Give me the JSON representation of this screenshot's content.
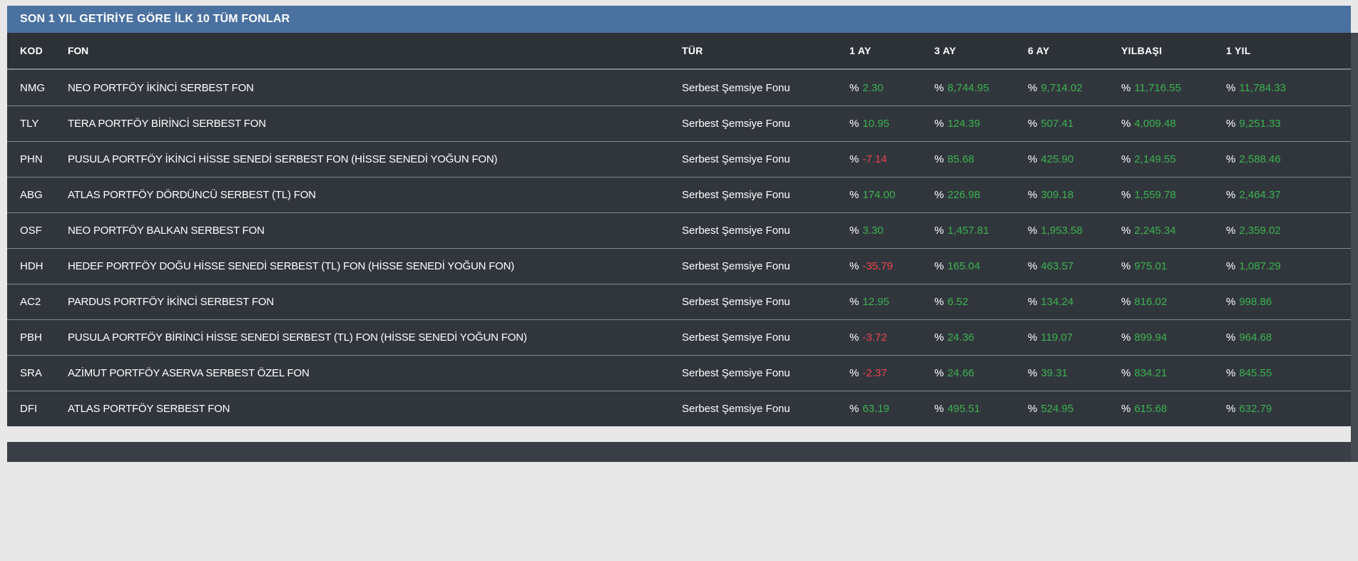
{
  "panel": {
    "title": "SON 1 YIL GETİRİYE GÖRE İLK 10 TÜM FONLAR"
  },
  "table": {
    "percent_sign": "%",
    "columns": [
      "KOD",
      "FON",
      "TÜR",
      "1 AY",
      "3 AY",
      "6 AY",
      "YILBAŞI",
      "1 YIL"
    ],
    "rows": [
      {
        "kod": "NMG",
        "fon": "NEO PORTFÖY İKİNCİ SERBEST FON",
        "tur": "Serbest Şemsiye Fonu",
        "m1": "2.30",
        "m3": "8,744.95",
        "m6": "9,714.02",
        "ytd": "11,716.55",
        "y1": "11,784.33"
      },
      {
        "kod": "TLY",
        "fon": "TERA PORTFÖY BİRİNCİ SERBEST FON",
        "tur": "Serbest Şemsiye Fonu",
        "m1": "10.95",
        "m3": "124.39",
        "m6": "507.41",
        "ytd": "4,009.48",
        "y1": "9,251.33"
      },
      {
        "kod": "PHN",
        "fon": "PUSULA PORTFÖY İKİNCİ HİSSE SENEDİ SERBEST FON (HİSSE SENEDİ YOĞUN FON)",
        "tur": "Serbest Şemsiye Fonu",
        "m1": "-7.14",
        "m3": "85.68",
        "m6": "425.90",
        "ytd": "2,149.55",
        "y1": "2,588.46"
      },
      {
        "kod": "ABG",
        "fon": "ATLAS PORTFÖY DÖRDÜNCÜ SERBEST (TL) FON",
        "tur": "Serbest Şemsiye Fonu",
        "m1": "174.00",
        "m3": "226.98",
        "m6": "309.18",
        "ytd": "1,559.78",
        "y1": "2,464.37"
      },
      {
        "kod": "OSF",
        "fon": "NEO PORTFÖY BALKAN SERBEST FON",
        "tur": "Serbest Şemsiye Fonu",
        "m1": "3.30",
        "m3": "1,457.81",
        "m6": "1,953.58",
        "ytd": "2,245.34",
        "y1": "2,359.02"
      },
      {
        "kod": "HDH",
        "fon": "HEDEF PORTFÖY DOĞU HİSSE SENEDİ SERBEST (TL) FON (HİSSE SENEDİ YOĞUN FON)",
        "tur": "Serbest Şemsiye Fonu",
        "m1": "-35.79",
        "m3": "165.04",
        "m6": "463.57",
        "ytd": "975.01",
        "y1": "1,087.29"
      },
      {
        "kod": "AC2",
        "fon": "PARDUS PORTFÖY İKİNCİ SERBEST FON",
        "tur": "Serbest Şemsiye Fonu",
        "m1": "12.95",
        "m3": "6.52",
        "m6": "134.24",
        "ytd": "816.02",
        "y1": "998.86"
      },
      {
        "kod": "PBH",
        "fon": "PUSULA PORTFÖY BİRİNCİ HİSSE SENEDİ SERBEST (TL) FON (HİSSE SENEDİ YOĞUN FON)",
        "tur": "Serbest Şemsiye Fonu",
        "m1": "-3.72",
        "m3": "24.36",
        "m6": "119.07",
        "ytd": "899.94",
        "y1": "964.68"
      },
      {
        "kod": "SRA",
        "fon": "AZİMUT PORTFÖY ASERVA SERBEST ÖZEL FON",
        "tur": "Serbest Şemsiye Fonu",
        "m1": "-2.37",
        "m3": "24.66",
        "m6": "39.31",
        "ytd": "834.21",
        "y1": "845.55"
      },
      {
        "kod": "DFI",
        "fon": "ATLAS PORTFÖY SERBEST FON",
        "tur": "Serbest Şemsiye Fonu",
        "m1": "63.19",
        "m3": "495.51",
        "m6": "524.95",
        "ytd": "615.68",
        "y1": "632.79"
      }
    ]
  },
  "colors": {
    "title_bar": "#4a71a0",
    "header_bg": "#2d3239",
    "row_bg": "#31363d",
    "positive": "#3bb34e",
    "negative": "#f0434b"
  }
}
